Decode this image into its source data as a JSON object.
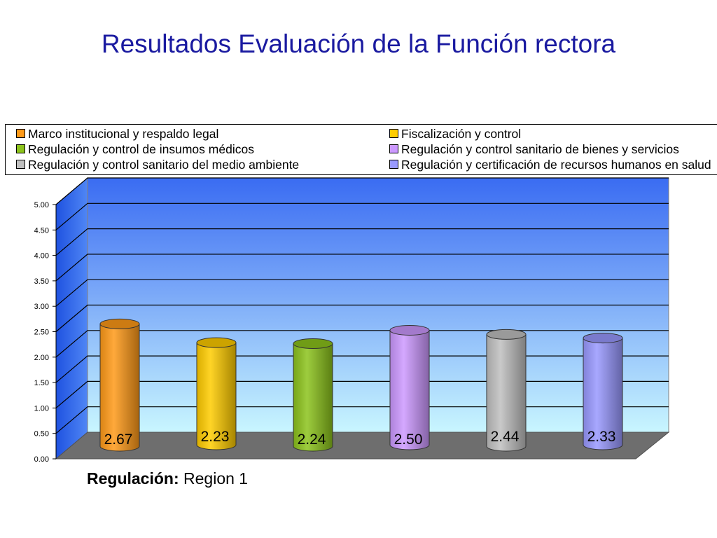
{
  "title": "Resultados Evaluación de la Función rectora",
  "legend": [
    {
      "label": "Marco institucional y respaldo legal",
      "color": "#ff9a18"
    },
    {
      "label": "Fiscalización y control",
      "color": "#ffcc00"
    },
    {
      "label": "Regulación y control de insumos médicos",
      "color": "#8cc31c"
    },
    {
      "label": "Regulación y control sanitario de bienes y servicios",
      "color": "#cc99ff"
    },
    {
      "label": "Regulación y control sanitario del medio ambiente",
      "color": "#c0c0c0"
    },
    {
      "label": "Regulación y certificación de recursos humanos en salud",
      "color": "#9999ff"
    }
  ],
  "footnote": {
    "label": "Regulación:",
    "value": "Region 1"
  },
  "chart_data": {
    "type": "bar",
    "categories": [
      "Marco institucional y respaldo legal",
      "Fiscalización y control",
      "Regulación y control de insumos médicos",
      "Regulación y control sanitario de bienes y servicios",
      "Regulación y control sanitario del medio ambiente",
      "Regulación y certificación de recursos humanos en salud"
    ],
    "values": [
      2.67,
      2.23,
      2.24,
      2.5,
      2.44,
      2.33
    ],
    "value_labels": [
      "2.67",
      "2.23",
      "2.24",
      "2.50",
      "2.44",
      "2.33"
    ],
    "colors": [
      "#ff9a18",
      "#ffcc00",
      "#8cc31c",
      "#cc99ff",
      "#c0c0c0",
      "#9999ff"
    ],
    "ylim": [
      0,
      5
    ],
    "yticks": [
      "0.00",
      "0.50",
      "1.00",
      "1.50",
      "2.00",
      "2.50",
      "3.00",
      "3.50",
      "4.00",
      "4.50",
      "5.00"
    ],
    "grid": true,
    "legend_position": "top",
    "style": "3d-cylinder"
  }
}
